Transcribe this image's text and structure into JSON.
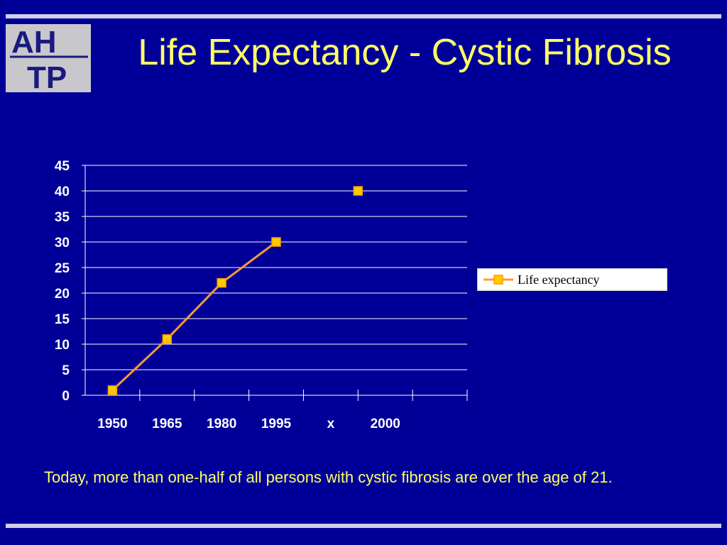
{
  "slide": {
    "title": "Life Expectancy - Cystic Fibrosis",
    "caption": "Today, more than one-half of all persons with cystic fibrosis are over the age of 21.",
    "logo": {
      "top_text": "AH",
      "bottom_text": "TP"
    }
  },
  "chart_data": {
    "type": "line",
    "categories": [
      "1950",
      "1965",
      "1980",
      "1995",
      "x",
      "2000"
    ],
    "series": [
      {
        "name": "Life expectancy",
        "values": [
          1,
          11,
          22,
          30,
          null,
          40
        ]
      }
    ],
    "ylim": [
      0,
      45
    ],
    "yticks": [
      0,
      5,
      10,
      15,
      20,
      25,
      30,
      35,
      40,
      45
    ],
    "grid": true,
    "legend_position": "right",
    "colors": {
      "line": "#ff9933",
      "marker_fill": "#ffcc00",
      "marker_stroke": "#ff9900",
      "grid": "#ffffff",
      "tick_text": "#ffffff"
    }
  }
}
